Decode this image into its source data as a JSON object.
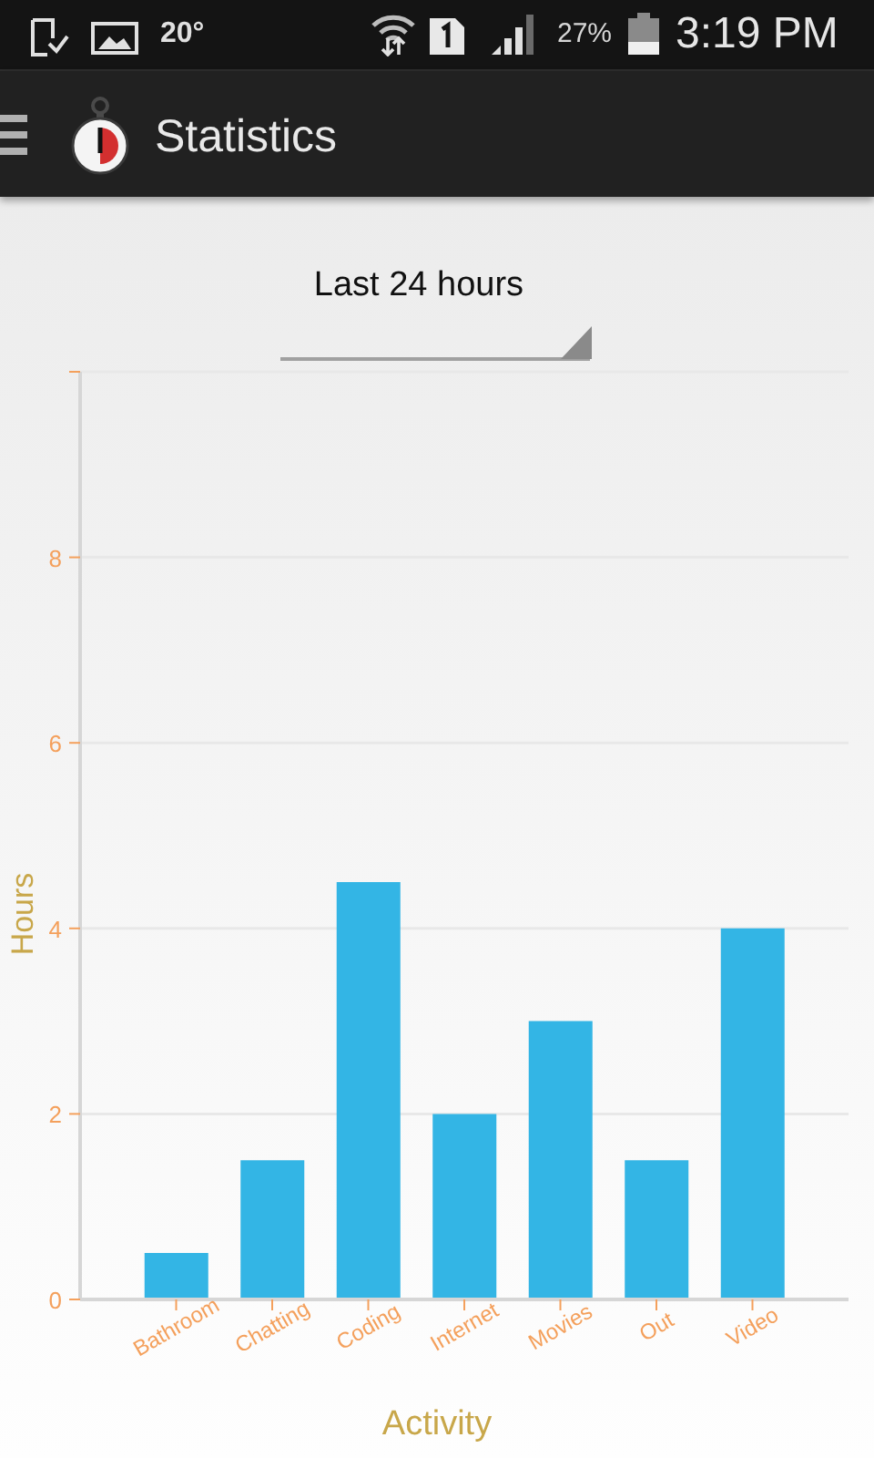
{
  "chart_data": {
    "type": "bar",
    "title": "Statistics",
    "subtitle": "Last 24 hours",
    "xlabel": "Activity",
    "ylabel": "Hours",
    "categories": [
      "Bathroom",
      "Chatting",
      "Coding",
      "Internet",
      "Movies",
      "Out",
      "Video"
    ],
    "values": [
      0.5,
      1.5,
      4.5,
      2,
      3,
      1.5,
      4
    ],
    "color": "#33b5e5",
    "ylim": [
      0,
      10
    ],
    "yticks": [
      0,
      2,
      4,
      6,
      8,
      {
        "value": 10,
        "label": null
      }
    ],
    "grid": "y",
    "annotations": [
      "20°",
      "27%",
      "3:19 PM"
    ]
  }
}
